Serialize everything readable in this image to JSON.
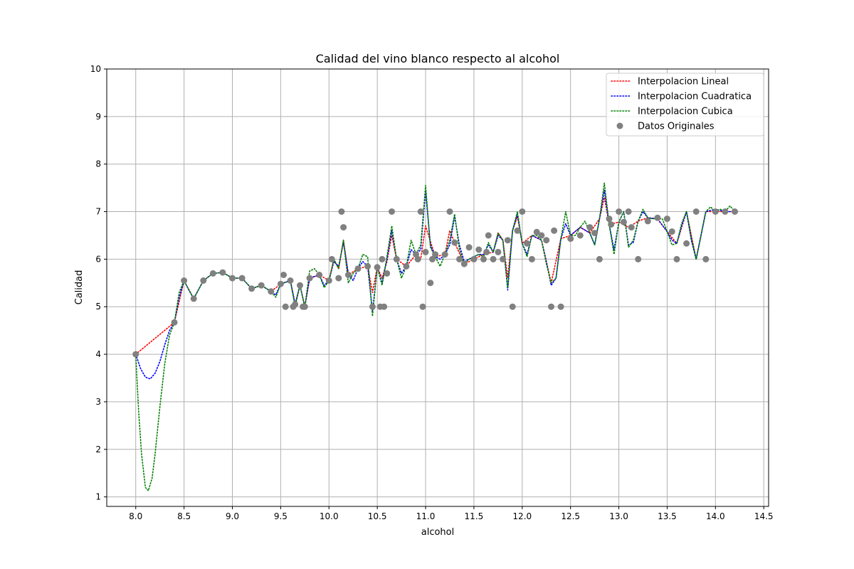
{
  "chart_data": {
    "type": "scatter",
    "title": "Calidad del vino blanco respecto al alcohol",
    "xlabel": "alcohol",
    "ylabel": "Calidad",
    "xlim": [
      7.7,
      14.55
    ],
    "ylim": [
      0.8,
      10
    ],
    "x_ticks": [
      "8.0",
      "8.5",
      "9.0",
      "9.5",
      "10.0",
      "10.5",
      "11.0",
      "11.5",
      "12.0",
      "12.5",
      "13.0",
      "13.5",
      "14.0",
      "14.5"
    ],
    "y_ticks": [
      "1",
      "2",
      "3",
      "4",
      "5",
      "6",
      "7",
      "8",
      "9",
      "10"
    ],
    "grid": true,
    "legend_position": "top-right",
    "points": {
      "name": "Datos Originales",
      "color": "#808080",
      "x": [
        8.0,
        8.4,
        8.5,
        8.6,
        8.7,
        8.8,
        8.9,
        9.0,
        9.1,
        9.2,
        9.3,
        9.4,
        9.5,
        9.53,
        9.55,
        9.6,
        9.63,
        9.65,
        9.7,
        9.73,
        9.75,
        9.8,
        9.9,
        10.0,
        10.03,
        10.1,
        10.13,
        10.15,
        10.2,
        10.3,
        10.4,
        10.45,
        10.5,
        10.53,
        10.55,
        10.57,
        10.6,
        10.65,
        10.7,
        10.8,
        10.9,
        10.92,
        10.95,
        10.97,
        11.0,
        11.05,
        11.07,
        11.1,
        11.2,
        11.25,
        11.3,
        11.35,
        11.4,
        11.45,
        11.5,
        11.55,
        11.6,
        11.63,
        11.65,
        11.7,
        11.75,
        11.8,
        11.85,
        11.9,
        11.95,
        12.0,
        12.05,
        12.1,
        12.15,
        12.2,
        12.25,
        12.3,
        12.33,
        12.4,
        12.5,
        12.6,
        12.7,
        12.75,
        12.8,
        12.9,
        12.92,
        13.0,
        13.05,
        13.1,
        13.13,
        13.2,
        13.3,
        13.4,
        13.5,
        13.55,
        13.6,
        13.7,
        13.8,
        13.9,
        14.0,
        14.1,
        14.2
      ],
      "y": [
        4.0,
        4.67,
        5.55,
        5.17,
        5.55,
        5.7,
        5.72,
        5.6,
        5.6,
        5.38,
        5.45,
        5.32,
        5.48,
        5.67,
        5.0,
        5.55,
        5.0,
        5.05,
        5.45,
        5.0,
        5.0,
        5.6,
        5.67,
        5.55,
        6.0,
        5.6,
        7.0,
        6.67,
        5.67,
        5.8,
        5.85,
        5.0,
        5.83,
        5.0,
        6.0,
        5.0,
        5.7,
        7.0,
        6.0,
        5.85,
        6.1,
        6.0,
        7.0,
        5.0,
        6.15,
        5.5,
        6.0,
        6.1,
        6.1,
        7.0,
        6.35,
        6.0,
        5.9,
        6.25,
        6.0,
        6.2,
        6.0,
        6.15,
        6.5,
        6.0,
        6.15,
        6.0,
        6.4,
        5.0,
        6.6,
        7.0,
        6.33,
        6.0,
        6.57,
        6.5,
        6.4,
        5.0,
        6.6,
        5.0,
        6.43,
        6.5,
        6.67,
        6.55,
        6.0,
        6.85,
        6.73,
        7.0,
        6.78,
        7.0,
        6.67,
        6.0,
        6.8,
        6.87,
        6.85,
        6.58,
        6.0,
        6.33,
        7.0,
        6.0,
        7.0,
        7.0,
        7.0
      ]
    },
    "series": [
      {
        "name": "Interpolacion Lineal",
        "color": "#ff0000",
        "x": [
          8.0,
          8.4,
          8.5,
          8.6,
          8.7,
          8.8,
          8.9,
          9.0,
          9.1,
          9.2,
          9.3,
          9.4,
          9.5,
          9.6,
          9.65,
          9.7,
          9.75,
          9.8,
          9.9,
          10.0,
          10.05,
          10.1,
          10.15,
          10.2,
          10.3,
          10.4,
          10.45,
          10.5,
          10.55,
          10.6,
          10.65,
          10.7,
          10.8,
          10.9,
          10.95,
          11.0,
          11.1,
          11.2,
          11.25,
          11.3,
          11.4,
          11.5,
          11.6,
          11.7,
          11.75,
          11.8,
          11.85,
          11.9,
          11.95,
          12.0,
          12.1,
          12.2,
          12.3,
          12.4,
          12.5,
          12.6,
          12.7,
          12.8,
          12.85,
          12.9,
          13.0,
          13.1,
          13.2,
          13.3,
          13.4,
          13.5,
          13.6,
          13.7,
          13.8,
          13.9,
          14.0,
          14.1,
          14.2
        ],
        "y": [
          4.0,
          4.67,
          5.55,
          5.17,
          5.55,
          5.7,
          5.72,
          5.6,
          5.6,
          5.38,
          5.45,
          5.32,
          5.48,
          5.55,
          5.05,
          5.45,
          5.0,
          5.6,
          5.67,
          5.55,
          6.0,
          5.8,
          6.4,
          5.67,
          5.8,
          5.85,
          5.3,
          5.83,
          5.6,
          5.95,
          6.5,
          6.0,
          5.85,
          6.1,
          6.0,
          6.7,
          6.05,
          6.1,
          6.6,
          6.35,
          5.9,
          6.0,
          6.1,
          6.15,
          6.55,
          6.4,
          5.6,
          6.6,
          6.9,
          6.33,
          6.5,
          6.4,
          5.5,
          6.43,
          6.5,
          6.67,
          6.55,
          6.85,
          7.3,
          6.73,
          6.78,
          6.67,
          6.8,
          6.87,
          6.85,
          6.58,
          6.33,
          7.0,
          6.0,
          7.0,
          7.0,
          7.0,
          7.0
        ]
      },
      {
        "name": "Interpolacion Cuadratica",
        "color": "#0000ff",
        "x": [
          8.0,
          8.05,
          8.1,
          8.15,
          8.2,
          8.25,
          8.3,
          8.35,
          8.4,
          8.45,
          8.5,
          8.55,
          8.6,
          8.7,
          8.8,
          8.9,
          9.0,
          9.1,
          9.2,
          9.3,
          9.4,
          9.45,
          9.5,
          9.6,
          9.65,
          9.7,
          9.75,
          9.8,
          9.9,
          9.95,
          10.0,
          10.05,
          10.1,
          10.15,
          10.2,
          10.25,
          10.3,
          10.35,
          10.4,
          10.45,
          10.5,
          10.55,
          10.6,
          10.65,
          10.7,
          10.75,
          10.8,
          10.85,
          10.9,
          10.95,
          11.0,
          11.05,
          11.1,
          11.15,
          11.2,
          11.25,
          11.3,
          11.35,
          11.4,
          11.45,
          11.5,
          11.55,
          11.6,
          11.65,
          11.7,
          11.75,
          11.8,
          11.85,
          11.9,
          11.95,
          12.0,
          12.05,
          12.1,
          12.15,
          12.2,
          12.25,
          12.3,
          12.35,
          12.4,
          12.45,
          12.5,
          12.6,
          12.7,
          12.75,
          12.8,
          12.85,
          12.9,
          12.95,
          13.0,
          13.05,
          13.1,
          13.15,
          13.2,
          13.25,
          13.3,
          13.4,
          13.5,
          13.55,
          13.6,
          13.65,
          13.7,
          13.75,
          13.8,
          13.85,
          13.9,
          14.0,
          14.1,
          14.2
        ],
        "y": [
          4.0,
          3.7,
          3.52,
          3.48,
          3.6,
          3.85,
          4.2,
          4.5,
          4.67,
          5.2,
          5.55,
          5.35,
          5.17,
          5.55,
          5.7,
          5.72,
          5.6,
          5.6,
          5.38,
          5.45,
          5.32,
          5.25,
          5.48,
          5.55,
          5.05,
          5.45,
          5.0,
          5.6,
          5.67,
          5.45,
          5.55,
          5.95,
          5.85,
          6.35,
          5.7,
          5.55,
          5.8,
          5.95,
          5.85,
          4.9,
          5.83,
          5.5,
          6.0,
          6.6,
          6.0,
          5.7,
          5.85,
          6.2,
          6.1,
          6.2,
          7.45,
          6.3,
          6.05,
          6.0,
          6.1,
          6.3,
          6.9,
          6.3,
          5.95,
          6.0,
          6.05,
          6.1,
          6.1,
          6.3,
          6.15,
          6.5,
          6.4,
          5.35,
          6.6,
          6.95,
          6.33,
          6.1,
          6.5,
          6.45,
          6.4,
          5.95,
          5.45,
          5.6,
          6.43,
          6.75,
          6.5,
          6.67,
          6.55,
          6.3,
          6.85,
          7.45,
          6.73,
          6.2,
          6.78,
          7.0,
          6.3,
          6.35,
          6.8,
          7.0,
          6.87,
          6.85,
          6.58,
          6.4,
          6.33,
          6.7,
          7.0,
          6.4,
          6.0,
          6.5,
          7.0,
          7.05,
          7.0,
          7.0
        ]
      },
      {
        "name": "Interpolacion Cubica",
        "color": "#008000",
        "x": [
          8.0,
          8.03,
          8.06,
          8.1,
          8.13,
          8.17,
          8.2,
          8.25,
          8.3,
          8.35,
          8.4,
          8.45,
          8.5,
          8.55,
          8.6,
          8.7,
          8.8,
          8.9,
          9.0,
          9.1,
          9.2,
          9.3,
          9.4,
          9.45,
          9.5,
          9.6,
          9.65,
          9.7,
          9.75,
          9.8,
          9.85,
          9.9,
          9.95,
          10.0,
          10.05,
          10.1,
          10.15,
          10.2,
          10.25,
          10.3,
          10.35,
          10.4,
          10.45,
          10.5,
          10.55,
          10.6,
          10.65,
          10.7,
          10.75,
          10.8,
          10.85,
          10.9,
          10.95,
          11.0,
          11.05,
          11.1,
          11.15,
          11.2,
          11.25,
          11.3,
          11.35,
          11.4,
          11.45,
          11.5,
          11.55,
          11.6,
          11.65,
          11.7,
          11.75,
          11.8,
          11.85,
          11.9,
          11.95,
          12.0,
          12.05,
          12.1,
          12.15,
          12.2,
          12.25,
          12.3,
          12.35,
          12.4,
          12.45,
          12.5,
          12.55,
          12.6,
          12.65,
          12.7,
          12.75,
          12.8,
          12.85,
          12.9,
          12.95,
          13.0,
          13.05,
          13.1,
          13.15,
          13.2,
          13.25,
          13.3,
          13.35,
          13.4,
          13.45,
          13.5,
          13.55,
          13.6,
          13.65,
          13.7,
          13.75,
          13.8,
          13.85,
          13.9,
          13.95,
          14.0,
          14.05,
          14.1,
          14.15,
          14.2
        ],
        "y": [
          4.0,
          2.8,
          1.9,
          1.2,
          1.13,
          1.4,
          1.9,
          2.9,
          3.8,
          4.4,
          4.67,
          5.3,
          5.55,
          5.35,
          5.17,
          5.55,
          5.7,
          5.72,
          5.6,
          5.6,
          5.38,
          5.45,
          5.32,
          5.2,
          5.48,
          5.55,
          5.0,
          5.45,
          5.0,
          5.75,
          5.8,
          5.67,
          5.4,
          5.55,
          6.0,
          5.8,
          6.4,
          5.5,
          5.7,
          5.8,
          6.1,
          6.05,
          4.8,
          5.83,
          5.45,
          6.05,
          6.7,
          6.0,
          5.6,
          5.85,
          6.4,
          6.1,
          6.3,
          7.55,
          6.25,
          6.05,
          5.85,
          6.1,
          6.4,
          6.95,
          6.2,
          5.9,
          6.0,
          6.05,
          6.1,
          6.05,
          6.35,
          6.15,
          6.55,
          6.4,
          5.4,
          6.6,
          7.0,
          6.33,
          6.05,
          6.5,
          6.5,
          6.4,
          5.9,
          5.5,
          5.6,
          6.43,
          7.0,
          6.5,
          6.5,
          6.67,
          6.8,
          6.55,
          6.3,
          6.85,
          7.6,
          6.73,
          6.1,
          6.78,
          7.0,
          6.25,
          6.4,
          6.8,
          7.05,
          6.87,
          6.85,
          6.85,
          6.85,
          6.58,
          6.3,
          6.33,
          6.75,
          7.0,
          6.45,
          6.0,
          6.5,
          7.0,
          7.1,
          7.0,
          7.05,
          7.0,
          7.12,
          7.0
        ]
      }
    ]
  }
}
